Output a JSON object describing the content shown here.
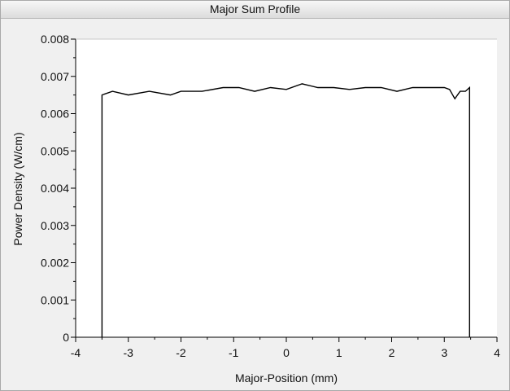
{
  "window": {
    "title": "Major Sum Profile"
  },
  "chart_data": {
    "type": "line",
    "title": "Major Sum Profile",
    "xlabel": "Major-Position (mm)",
    "ylabel": "Power Density (W/cm)",
    "xlim": [
      -4,
      4
    ],
    "ylim": [
      0,
      0.008
    ],
    "x_ticks": [
      -4,
      -3,
      -2,
      -1,
      0,
      1,
      2,
      3,
      4
    ],
    "x_tick_labels": [
      "-4",
      "-3",
      "-2",
      "-1",
      "0",
      "1",
      "2",
      "3",
      "4"
    ],
    "y_ticks": [
      0,
      0.001,
      0.002,
      0.003,
      0.004,
      0.005,
      0.006,
      0.007,
      0.008
    ],
    "y_tick_labels": [
      "0",
      "0.001",
      "0.002",
      "0.003",
      "0.004",
      "0.005",
      "0.006",
      "0.007",
      "0.008"
    ],
    "grid": false,
    "legend": "none",
    "series": [
      {
        "color": "#000000",
        "x": [
          -3.5,
          -3.5,
          -3.3,
          -3.0,
          -2.6,
          -2.2,
          -2.0,
          -1.6,
          -1.2,
          -0.9,
          -0.6,
          -0.3,
          0.0,
          0.3,
          0.6,
          0.9,
          1.2,
          1.5,
          1.8,
          2.1,
          2.4,
          2.7,
          3.0,
          3.1,
          3.2,
          3.3,
          3.4,
          3.48,
          3.48
        ],
        "y": [
          0,
          0.0065,
          0.0066,
          0.0065,
          0.0066,
          0.0065,
          0.0066,
          0.0066,
          0.0067,
          0.0067,
          0.0066,
          0.0067,
          0.00665,
          0.0068,
          0.0067,
          0.0067,
          0.00665,
          0.0067,
          0.0067,
          0.0066,
          0.0067,
          0.0067,
          0.0067,
          0.00665,
          0.0064,
          0.0066,
          0.0066,
          0.0067,
          0
        ]
      }
    ]
  }
}
